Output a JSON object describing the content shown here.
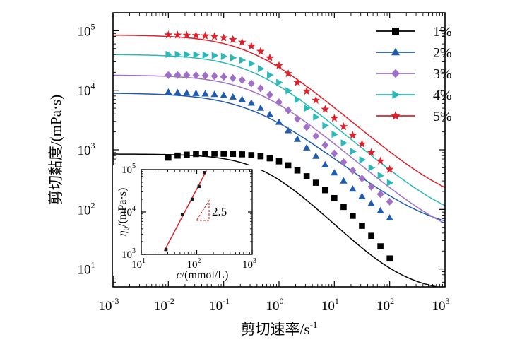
{
  "chart_data": [
    {
      "type": "line",
      "xlabel": "剪切速率/s",
      "xlabel_sup": "-1",
      "ylabel": "剪切黏度/(mPa·s)",
      "x_scale": "log",
      "y_scale": "log",
      "xlim": [
        0.001,
        1000
      ],
      "ylim": [
        5,
        200000
      ],
      "x_ticks": [
        {
          "base": "10",
          "exp": "-3"
        },
        {
          "base": "10",
          "exp": "-2"
        },
        {
          "base": "10",
          "exp": "-1"
        },
        {
          "base": "10",
          "exp": "0"
        },
        {
          "base": "10",
          "exp": "1"
        },
        {
          "base": "10",
          "exp": "2"
        },
        {
          "base": "10",
          "exp": "3"
        }
      ],
      "y_ticks": [
        {
          "base": "10",
          "exp": "1"
        },
        {
          "base": "10",
          "exp": "2"
        },
        {
          "base": "10",
          "exp": "3"
        },
        {
          "base": "10",
          "exp": "4"
        },
        {
          "base": "10",
          "exp": "5"
        }
      ],
      "grid": false,
      "legend_position": "top-right",
      "series": [
        {
          "name": "1%",
          "color": "#000000",
          "marker": "square",
          "eta0": 850,
          "lambda": 1.8,
          "n": 0.06,
          "eta_inf": 4,
          "x_start": 0.009,
          "x_end": 100,
          "points": [
            [
              0.01,
              740
            ],
            [
              0.0147,
              800
            ],
            [
              0.0215,
              830
            ],
            [
              0.0316,
              850
            ],
            [
              0.0464,
              860
            ],
            [
              0.0681,
              862
            ],
            [
              0.1,
              860
            ],
            [
              0.147,
              855
            ],
            [
              0.215,
              840
            ],
            [
              0.316,
              815
            ],
            [
              0.464,
              780
            ],
            [
              0.681,
              720
            ],
            [
              1.0,
              640
            ],
            [
              1.47,
              550
            ],
            [
              2.15,
              450
            ],
            [
              3.16,
              360
            ],
            [
              4.64,
              280
            ],
            [
              6.81,
              210
            ],
            [
              10.0,
              155
            ],
            [
              14.7,
              110
            ],
            [
              21.5,
              78
            ],
            [
              31.6,
              53
            ],
            [
              46.4,
              36
            ],
            [
              68.1,
              24
            ],
            [
              100,
              15
            ]
          ]
        },
        {
          "name": "2%",
          "color": "#1f5bb0",
          "marker": "triangle",
          "eta0": 9000,
          "lambda": 3.0,
          "n": 0.26,
          "eta_inf": 40,
          "x_start": 0.009,
          "x_end": 100,
          "points": [
            [
              0.01,
              9300
            ],
            [
              0.0147,
              9150
            ],
            [
              0.0215,
              9000
            ],
            [
              0.0316,
              8850
            ],
            [
              0.0464,
              8700
            ],
            [
              0.0681,
              8500
            ],
            [
              0.1,
              8200
            ],
            [
              0.147,
              7700
            ],
            [
              0.215,
              7000
            ],
            [
              0.316,
              6100
            ],
            [
              0.464,
              5000
            ],
            [
              0.681,
              3900
            ],
            [
              1.0,
              2900
            ],
            [
              1.47,
              2100
            ],
            [
              2.15,
              1500
            ],
            [
              3.16,
              1080
            ],
            [
              4.64,
              780
            ],
            [
              6.81,
              560
            ],
            [
              10.0,
              410
            ],
            [
              14.7,
              300
            ],
            [
              21.5,
              220
            ],
            [
              31.6,
              165
            ],
            [
              46.4,
              125
            ],
            [
              68.1,
              95
            ],
            [
              100,
              72
            ]
          ]
        },
        {
          "name": "3%",
          "color": "#a070c8",
          "marker": "diamond",
          "eta0": 18000,
          "lambda": 2.6,
          "n": 0.2,
          "eta_inf": 25,
          "x_start": 0.009,
          "x_end": 100,
          "points": [
            [
              0.01,
              18000
            ],
            [
              0.0147,
              18000
            ],
            [
              0.0215,
              17900
            ],
            [
              0.0316,
              17800
            ],
            [
              0.0464,
              17600
            ],
            [
              0.0681,
              17300
            ],
            [
              0.1,
              16800
            ],
            [
              0.147,
              16000
            ],
            [
              0.215,
              14800
            ],
            [
              0.316,
              13000
            ],
            [
              0.464,
              10800
            ],
            [
              0.681,
              8400
            ],
            [
              1.0,
              6300
            ],
            [
              1.47,
              4600
            ],
            [
              2.15,
              3300
            ],
            [
              3.16,
              2400
            ],
            [
              4.64,
              1700
            ],
            [
              6.81,
              1200
            ],
            [
              10.0,
              870
            ],
            [
              14.7,
              620
            ],
            [
              21.5,
              450
            ],
            [
              31.6,
              330
            ],
            [
              46.4,
              240
            ],
            [
              68.1,
              180
            ],
            [
              100,
              135
            ]
          ]
        },
        {
          "name": "4%",
          "color": "#2ab8b8",
          "marker": "triangle-right",
          "eta0": 40000,
          "lambda": 3.0,
          "n": 0.2,
          "eta_inf": 50,
          "x_start": 0.009,
          "x_end": 100,
          "points": [
            [
              0.01,
              40000
            ],
            [
              0.0147,
              40000
            ],
            [
              0.0215,
              39800
            ],
            [
              0.0316,
              39500
            ],
            [
              0.0464,
              39000
            ],
            [
              0.0681,
              38200
            ],
            [
              0.1,
              37000
            ],
            [
              0.147,
              35000
            ],
            [
              0.215,
              32000
            ],
            [
              0.316,
              28000
            ],
            [
              0.464,
              23000
            ],
            [
              0.681,
              18000
            ],
            [
              1.0,
              13500
            ],
            [
              1.47,
              9800
            ],
            [
              2.15,
              7000
            ],
            [
              3.16,
              5000
            ],
            [
              4.64,
              3550
            ],
            [
              6.81,
              2550
            ],
            [
              10.0,
              1820
            ],
            [
              14.7,
              1300
            ],
            [
              21.5,
              940
            ],
            [
              31.6,
              680
            ],
            [
              46.4,
              500
            ],
            [
              68.1,
              370
            ],
            [
              100,
              280
            ]
          ]
        },
        {
          "name": "5%",
          "color": "#e0202a",
          "marker": "star",
          "eta0": 85000,
          "lambda": 3.2,
          "n": 0.2,
          "eta_inf": 100,
          "x_start": 0.009,
          "x_end": 100,
          "points": [
            [
              0.01,
              85000
            ],
            [
              0.0147,
              84500
            ],
            [
              0.0215,
              84000
            ],
            [
              0.0316,
              83000
            ],
            [
              0.0464,
              82000
            ],
            [
              0.0681,
              80000
            ],
            [
              0.1,
              76000
            ],
            [
              0.147,
              71000
            ],
            [
              0.215,
              64000
            ],
            [
              0.316,
              55000
            ],
            [
              0.464,
              45000
            ],
            [
              0.681,
              35000
            ],
            [
              1.0,
              26000
            ],
            [
              1.47,
              19000
            ],
            [
              2.15,
              13500
            ],
            [
              3.16,
              9600
            ],
            [
              4.64,
              6800
            ],
            [
              6.81,
              4800
            ],
            [
              10.0,
              3400
            ],
            [
              14.7,
              2450
            ],
            [
              21.5,
              1750
            ],
            [
              31.6,
              1250
            ],
            [
              46.4,
              900
            ],
            [
              68.1,
              650
            ],
            [
              100,
              470
            ]
          ]
        }
      ]
    },
    {
      "type": "scatter",
      "xlabel": "c",
      "xlabel_rest": "/(mmol/L)",
      "ylabel": "η",
      "ylabel_sub": "0",
      "ylabel_rest": "/(mPa·s)",
      "x_scale": "log",
      "y_scale": "log",
      "xlim": [
        10,
        1000
      ],
      "ylim": [
        1000,
        100000
      ],
      "x_ticks": [
        {
          "base": "10",
          "exp": "1"
        },
        {
          "base": "10",
          "exp": "2"
        },
        {
          "base": "10",
          "exp": "3"
        }
      ],
      "y_ticks": [
        {
          "base": "10",
          "exp": "3"
        },
        {
          "base": "10",
          "exp": "4"
        },
        {
          "base": "10",
          "exp": "5"
        }
      ],
      "annotation": "2.5",
      "fit_color": "#e0202a",
      "points": [
        [
          28,
          1300
        ],
        [
          55,
          8800
        ],
        [
          83,
          20000
        ],
        [
          110,
          40000
        ],
        [
          138,
          85000
        ]
      ],
      "fit_line": [
        [
          26,
          1200
        ],
        [
          150,
          95000
        ]
      ]
    }
  ]
}
